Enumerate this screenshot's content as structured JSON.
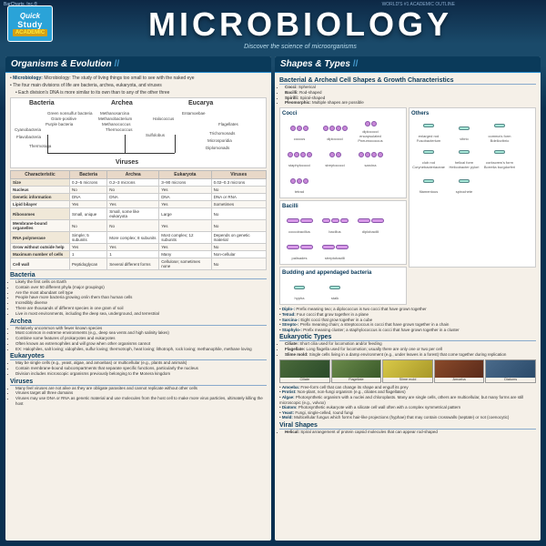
{
  "publisher": "BarCharts, Inc.®",
  "tagline_top": "WORLD'S #1 ACADEMIC OUTLINE",
  "badge": {
    "top": "Quick",
    "mid": "Study",
    "bot": "ACADEMIC"
  },
  "title": "MICROBIOLOGY",
  "subtitle": "Discover the science of microorganisms",
  "left": {
    "header": "Organisms & Evolution",
    "intro1": "Microbiology: The study of living things too small to see with the naked eye",
    "intro2": "The four main divisions of life are bacteria, archea, eukaryota, and viruses",
    "intro3": "Each division's DNA is more similar to its own than to any of the other three",
    "tree": {
      "bacteria": "Bacteria",
      "archea": "Archea",
      "eucarya": "Eucarya",
      "viruses": "Viruses",
      "items": [
        "Green nonsulfur bacteria",
        "Gram-positive",
        "Purple bacteria",
        "Cyanobacteria",
        "Flavobacteria",
        "Thermotoga",
        "Methanosarcina",
        "Methanobacterium",
        "Methanococcus",
        "Thermococcus",
        "Sulfolobus",
        "Entamoebae",
        "Halococcus",
        "Flagellates",
        "Trichomonads",
        "Microsporidia",
        "Diplomonads"
      ]
    },
    "table": {
      "cols": [
        "Characteristic",
        "Bacteria",
        "Archea",
        "Eukaryota",
        "Viruses"
      ],
      "rows": [
        [
          "Size",
          "0.2–5 microns",
          "0.2–3 microns",
          "3–90 microns",
          "0.02–0.3 microns"
        ],
        [
          "Nucleus",
          "No",
          "No",
          "Yes",
          "No"
        ],
        [
          "Genetic information",
          "DNA",
          "DNA",
          "DNA",
          "DNA or RNA"
        ],
        [
          "Lipid bilayer",
          "Yes",
          "Yes",
          "Yes",
          "Sometimes"
        ],
        [
          "Ribosomes",
          "Small, unique",
          "Small, some like eukaryota",
          "Large",
          "No"
        ],
        [
          "Membrane-bound organelles",
          "No",
          "No",
          "Yes",
          "No"
        ],
        [
          "RNA polymerase",
          "Simple; 5 subunits",
          "More complex; 8 subunits",
          "Most complex; 12 subunits",
          "Depends on genetic material"
        ],
        [
          "Grow without outside help",
          "Yes",
          "Yes",
          "Yes",
          "No"
        ],
        [
          "Maximum number of cells",
          "1",
          "1",
          "Many",
          "Non-cellular"
        ],
        [
          "Cell wall",
          "Peptidoglycan",
          "Several different forms",
          "Cellulose; sometimes none",
          "No"
        ]
      ]
    },
    "sections": [
      {
        "head": "Bacteria",
        "items": [
          "Likely the first cells on Earth",
          "Contain over 50 different phyla (major groupings)",
          "Are the most abundant cell type",
          "People have more bacteria growing on/in them than human cells",
          "Incredibly diverse",
          "There are thousands of different species in one gram of soil",
          "Live in most environments, including the deep sea, underground, and terrestrial"
        ]
      },
      {
        "head": "Archea",
        "items": [
          "Relatively uncommon with fewer known species",
          "Most common in extreme environments (e.g., deep sea vents and high salinity lakes)",
          "Combine some features of prokaryotes and eukaryotes",
          "Often known as extremophiles and will grow when other organisms cannot",
          "EX: Halophiles, salt loving; xidophiles, sulfur loving; thermotroph, heat loving; lithotroph, rock loving; methanophile, methane loving"
        ]
      },
      {
        "head": "Eukaryotes",
        "items": [
          "May be single cells (e.g., yeast, algae, and amoebas) or multicellular (e.g., plants and animals)",
          "Contain membrane-bound subcompartments that separate specific functions, particularly the nucleus",
          "Division includes microscopic organisms previously belonging to the Monera kingdom"
        ]
      },
      {
        "head": "Viruses",
        "items": [
          "Many feel viruses are not alive as they are obligate parasites and cannot replicate without other cells",
          "Viruses target all three domains",
          "Viruses may use DNA or RNA as genetic material and use molecules from the host cell to make more virus particles, ultimately killing the host"
        ]
      }
    ]
  },
  "right": {
    "header": "Shapes & Types",
    "char_head": "Bacterial & Archeal Cell Shapes & Growth Characteristics",
    "char_items": [
      "Cocci: Spherical",
      "Bacilli: Rod-shaped",
      "Spirilli: Spiral-shaped",
      "Pleomorphic: Multiple shapes are possible"
    ],
    "shape_groups": {
      "cocci": {
        "title": "Cocci",
        "items": [
          "coccus",
          "diplococci",
          "diplococci encapsulated Pneumococcus",
          "staphylococci",
          "streptococci",
          "sarcina",
          "tetrad"
        ]
      },
      "others": {
        "title": "Others",
        "items": [
          "enlarged rod Fusobacterium",
          "vibrio",
          "comma's form Bdellovibrio",
          "club rod Corynebacteriaceae",
          "helical form Helicobacter pylori",
          "corkscrew's form Borrelia burgdorferi",
          "filamentous",
          "spirochete"
        ]
      },
      "bacilli": {
        "title": "Bacilli",
        "items": [
          "coccobacillus",
          "bacillus",
          "diplobacilli",
          "palisades",
          "streptobacilli"
        ]
      },
      "budding": {
        "title": "Budding and appendaged bacteria",
        "items": [
          "hypha",
          "stalk"
        ]
      }
    },
    "prefix_defs": [
      "Diplo-: Prefix meaning two; a diplococcus is two cocci that have grown together",
      "Tetrad: Four cocci that grow together in a plane",
      "Sarcina-: Eight cocci that grow together in a cube",
      "Strepto-: Prefix meaning chain; a streptococcus is cocci that have grown together in a chain",
      "Staphylo-: Prefix meaning cluster; a staphylococcus is cocci that have grown together in a cluster"
    ],
    "euk_head": "Eukaryotic Types",
    "euk_items": [
      "Ciliate: Short cilia used for locomotion and/or feeding",
      "Flagellate: Long flagella used for locomotion; usually there are only one or two per cell",
      "Slime mold: Single cells living in a damp environment (e.g., under leaves in a forest) that come together during replication"
    ],
    "photos": [
      "Ciliate",
      "Flagellate",
      "Slime mold",
      "Amoeba",
      "Diatoms"
    ],
    "euk_defs": [
      "Amoeba: Free-form cell that can change its shape and engulf its prey",
      "Protist: Non-plant, non-fungi organism (e.g., ciliates and flagellates)",
      "Algae: Photosynthetic organism with a nuclei and chloroplasts. Many are single cells, others are multicellular, but many forms are still microscopic (e.g., volvox)",
      "Diatom: Photosynthetic eukaryote with a silicate cell wall often with a complex symmetrical pattern",
      "Yeast: Fungi, single-celled, round fungi",
      "Mold: Multicellular fungus which forms hair-like projections (hyphae) that may contain crosswalls (septate) or not (coenocytic)"
    ],
    "viral_head": "Viral Shapes",
    "viral_items": [
      "Helical: Spiral arrangement of protein capsid molecules that can appear rod-shaped"
    ]
  },
  "colors": {
    "bg": "#0a3050",
    "panel_bg": "#f5f0e8",
    "hdr_bg": "#0a3a5a",
    "accent": "#2288cc",
    "cocci": "#c988d8",
    "bacilli": "#d898e8",
    "other": "#a8e8d8"
  }
}
